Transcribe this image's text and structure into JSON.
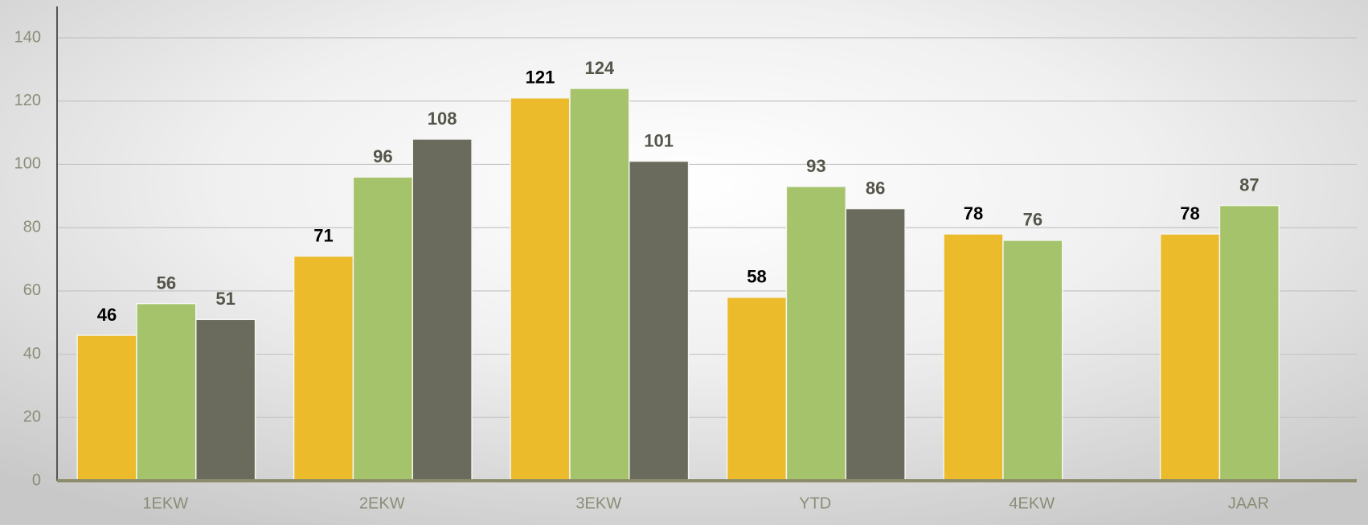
{
  "chart_data": {
    "type": "bar",
    "categories": [
      "1EKW",
      "2EKW",
      "3EKW",
      "YTD",
      "4EKW",
      "JAAR"
    ],
    "series": [
      {
        "color": "#ebbb2c",
        "values": [
          46,
          71,
          121,
          58,
          78,
          78
        ]
      },
      {
        "color": "#a5c36a",
        "values": [
          56,
          96,
          124,
          93,
          76,
          87
        ]
      },
      {
        "color": "#6b6b5d",
        "values": [
          51,
          108,
          101,
          86,
          null,
          null
        ]
      }
    ],
    "ylim": [
      0,
      140
    ],
    "yticks": [
      0,
      20,
      40,
      60,
      80,
      100,
      120,
      140
    ],
    "grid": true
  }
}
